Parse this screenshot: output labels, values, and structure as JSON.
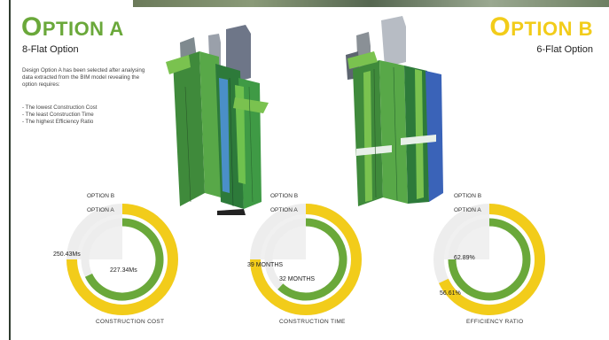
{
  "option_a": {
    "title_first": "O",
    "title_rest": "PTION A",
    "subtitle": "8-Flat Option",
    "description": "Design Option A has been selected after analysing data extracted from the BIM model revealing the option requires:",
    "bullets": [
      "The lowest Construction Cost",
      "The least Construction Time",
      "The highest Efficiency Ratio"
    ]
  },
  "option_b": {
    "title_first": "O",
    "title_rest": "PTION B",
    "subtitle": "6-Flat Option"
  },
  "colors": {
    "option_a": "#6aa83a",
    "option_b": "#f2cc1a",
    "track": "#e6e6e6"
  },
  "charts": [
    {
      "caption": "CONSTRUCTION COST",
      "label_b": "OPTION B",
      "label_a": "OPTION A",
      "value_b_text": "250.43Ms",
      "value_a_text": "227.34Ms",
      "fraction_b": 0.75,
      "fraction_a": 0.68
    },
    {
      "caption": "CONSTRUCTION TIME",
      "label_b": "OPTION B",
      "label_a": "OPTION A",
      "value_b_text": "39 MONTHS",
      "value_a_text": "32 MONTHS",
      "fraction_b": 0.75,
      "fraction_a": 0.62
    },
    {
      "caption": "EFFICIENCY RATIO",
      "label_b": "OPTION B",
      "label_a": "OPTION A",
      "value_b_text": "56.61%",
      "value_a_text": "62.89%",
      "fraction_b": 0.68,
      "fraction_a": 0.75
    }
  ]
}
